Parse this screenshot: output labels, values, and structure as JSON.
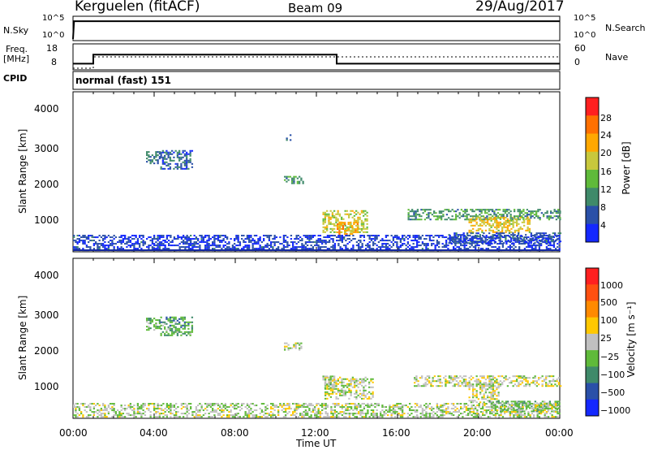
{
  "header": {
    "station": "Kerguelen (fitACF)",
    "beam": "Beam 09",
    "date": "29/Aug/2017"
  },
  "top_panels": {
    "nsky_label": "N.Sky",
    "nsky_ticks": [
      "10^5",
      "10^0"
    ],
    "nsearch_label": "N.Search",
    "nsearch_ticks": [
      "10^5",
      "10^0"
    ],
    "freq_label": "Freq.",
    "freq_unit": "[MHz]",
    "freq_ticks": [
      "18",
      "8"
    ],
    "nave_label": "Nave",
    "nave_ticks": [
      "60",
      "0"
    ],
    "cpid_label": "CPID",
    "cpid_value": "normal (fast) 151"
  },
  "power_panel": {
    "ylabel": "Slant Range [km]",
    "yticks": [
      "4000",
      "3000",
      "2000",
      "1000"
    ],
    "colorbar_label": "Power [dB]",
    "colorbar_ticks": [
      "28",
      "24",
      "20",
      "16",
      "12",
      "8",
      "4"
    ],
    "colors": [
      "#1428ff",
      "#2a50a8",
      "#3f8a6a",
      "#5fba3a",
      "#c8c83c",
      "#ffa800",
      "#ff7000",
      "#ff2020"
    ]
  },
  "velocity_panel": {
    "ylabel": "Slant Range [km]",
    "yticks": [
      "4000",
      "3000",
      "2000",
      "1000"
    ],
    "colorbar_label": "Velocity [m s⁻¹]",
    "colorbar_ticks": [
      "1000",
      "500",
      "100",
      "25",
      "−25",
      "−100",
      "−500",
      "−1000"
    ],
    "colors": [
      "#1428ff",
      "#2a50a8",
      "#3f8a6a",
      "#5fba3a",
      "#c0c0c0",
      "#ffc800",
      "#ff8a00",
      "#ff5010",
      "#ff2020"
    ]
  },
  "x_axis": {
    "label": "Time UT",
    "ticks": [
      "00:00",
      "04:00",
      "08:00",
      "12:00",
      "16:00",
      "20:00",
      "00:00"
    ]
  },
  "chart_data": [
    {
      "type": "line",
      "title": "N.Sky / N.Search",
      "x_range_hours": [
        0,
        24
      ],
      "series": [
        {
          "name": "N.Sky",
          "x": [
            0,
            0.05,
            24
          ],
          "y_log10": [
            0,
            4.2,
            4.2
          ]
        },
        {
          "name": "N.Search",
          "x": [
            0,
            24
          ],
          "y_log10": [
            4.2,
            4.2
          ]
        }
      ]
    },
    {
      "type": "line",
      "title": "Freq. / Nave",
      "x_range_hours": [
        0,
        24
      ],
      "series": [
        {
          "name": "Freq.",
          "unit": "MHz",
          "x": [
            0,
            1.0,
            1.0,
            13.0,
            13.0,
            24
          ],
          "y": [
            10,
            10,
            14,
            14,
            10,
            10
          ]
        },
        {
          "name": "Nave",
          "x": [
            0,
            1.0,
            1.0,
            24
          ],
          "y": [
            0,
            0,
            30,
            30
          ]
        }
      ]
    },
    {
      "type": "heatmap",
      "title": "Power [dB]",
      "xlabel": "Time UT",
      "ylabel": "Slant Range [km]",
      "x_range_hours": [
        0,
        24
      ],
      "ylim": [
        180,
        4600
      ],
      "zlim": [
        0,
        30
      ],
      "regions": [
        {
          "t0": 3.6,
          "t1": 4.3,
          "r0": 2600,
          "r1": 2950,
          "z": 8
        },
        {
          "t0": 4.3,
          "t1": 5.9,
          "r0": 2450,
          "r1": 2950,
          "z": 6
        },
        {
          "t0": 10.4,
          "t1": 11.3,
          "r0": 2050,
          "r1": 2250,
          "z": 9
        },
        {
          "t0": 10.5,
          "t1": 10.8,
          "r0": 3200,
          "r1": 3400,
          "z": 6
        },
        {
          "t0": 12.3,
          "t1": 14.5,
          "r0": 700,
          "r1": 1300,
          "z": 16
        },
        {
          "t0": 13.0,
          "t1": 14.0,
          "r0": 650,
          "r1": 1000,
          "z": 21
        },
        {
          "t0": 16.5,
          "t1": 24.0,
          "r0": 1050,
          "r1": 1350,
          "z": 10
        },
        {
          "t0": 19.5,
          "t1": 22.5,
          "r0": 700,
          "r1": 1150,
          "z": 18
        },
        {
          "t0": 18.5,
          "t1": 24.0,
          "r0": 400,
          "r1": 700,
          "z": 6
        },
        {
          "t0": 0.0,
          "t1": 24.0,
          "r0": 200,
          "r1": 650,
          "z": 4
        }
      ]
    },
    {
      "type": "heatmap",
      "title": "Velocity [m s⁻¹]",
      "xlabel": "Time UT",
      "ylabel": "Slant Range [km]",
      "x_range_hours": [
        0,
        24
      ],
      "ylim": [
        180,
        4600
      ],
      "zlim": [
        -1000,
        1000
      ],
      "regions": [
        {
          "t0": 3.6,
          "t1": 4.3,
          "r0": 2600,
          "r1": 2950,
          "z": -200
        },
        {
          "t0": 4.3,
          "t1": 5.9,
          "r0": 2450,
          "r1": 2950,
          "z": -350
        },
        {
          "t0": 10.4,
          "t1": 11.3,
          "r0": 2050,
          "r1": 2250,
          "z": 0
        },
        {
          "t0": 12.4,
          "t1": 14.8,
          "r0": 700,
          "r1": 1300,
          "z": 0
        },
        {
          "t0": 12.3,
          "t1": 13.0,
          "r0": 1000,
          "r1": 1350,
          "z": -100
        },
        {
          "t0": 16.8,
          "t1": 24.0,
          "r0": 1050,
          "r1": 1350,
          "z": 10
        },
        {
          "t0": 19.5,
          "t1": 21.0,
          "r0": 600,
          "r1": 1100,
          "z": 0
        },
        {
          "t0": 20.5,
          "t1": 24.0,
          "r0": 350,
          "r1": 650,
          "z": -250
        },
        {
          "t0": 0.0,
          "t1": 24.0,
          "r0": 200,
          "r1": 600,
          "z": -60
        }
      ]
    }
  ]
}
